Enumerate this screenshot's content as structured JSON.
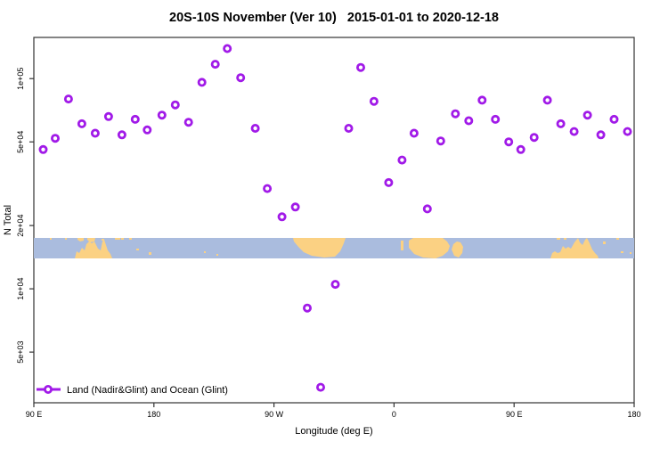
{
  "title": "20S-10S November (Ver 10)   2015-01-01 to 2020-12-18",
  "chart_data": {
    "type": "scatter",
    "title": "20S-10S November (Ver 10)   2015-01-01 to 2020-12-18",
    "xlabel": "Longitude (deg E)",
    "ylabel": "N Total",
    "x_scale": "linear",
    "y_scale": "log",
    "grid": false,
    "x_axis": {
      "min": 90,
      "max": 540,
      "ticks": [
        {
          "value": 90,
          "label": "90 E"
        },
        {
          "value": 180,
          "label": "180"
        },
        {
          "value": 270,
          "label": "90 W"
        },
        {
          "value": 360,
          "label": "0"
        },
        {
          "value": 450,
          "label": "90 E"
        },
        {
          "value": 540,
          "label": "180"
        }
      ]
    },
    "y_axis": {
      "min": 2870,
      "max": 157000,
      "ticks": [
        {
          "value": 100000,
          "label": "1e+05"
        },
        {
          "value": 50000,
          "label": "5e+04"
        },
        {
          "value": 20000,
          "label": "2e+04"
        },
        {
          "value": 10000,
          "label": "1e+04"
        },
        {
          "value": 5000,
          "label": "5e+03"
        }
      ]
    },
    "legend": {
      "position": "bottom-left",
      "label": "Land (Nadir&Glint) and Ocean (Glint)"
    },
    "series": [
      {
        "name": "Land (Nadir&Glint) and Ocean (Glint)",
        "marker": "open-circle",
        "color": "#a11ae8",
        "points": [
          [
            97,
            46000
          ],
          [
            106,
            52000
          ],
          [
            116,
            80000
          ],
          [
            126,
            61000
          ],
          [
            136,
            55000
          ],
          [
            146,
            66000
          ],
          [
            156,
            54000
          ],
          [
            166,
            64000
          ],
          [
            175,
            57000
          ],
          [
            186,
            67000
          ],
          [
            196,
            75000
          ],
          [
            206,
            62000
          ],
          [
            216,
            96000
          ],
          [
            226,
            117000
          ],
          [
            235,
            139000
          ],
          [
            245,
            101000
          ],
          [
            256,
            58000
          ],
          [
            265,
            30000
          ],
          [
            276,
            22000
          ],
          [
            286,
            24500
          ],
          [
            295,
            8100
          ],
          [
            305,
            3400
          ],
          [
            316,
            10500
          ],
          [
            326,
            58000
          ],
          [
            335,
            113000
          ],
          [
            345,
            78000
          ],
          [
            356,
            32000
          ],
          [
            366,
            41000
          ],
          [
            375,
            55000
          ],
          [
            385,
            24000
          ],
          [
            395,
            50500
          ],
          [
            406,
            68000
          ],
          [
            416,
            63000
          ],
          [
            426,
            79000
          ],
          [
            436,
            64000
          ],
          [
            446,
            50000
          ],
          [
            455,
            46000
          ],
          [
            465,
            52500
          ],
          [
            475,
            79000
          ],
          [
            485,
            61000
          ],
          [
            495,
            56000
          ],
          [
            505,
            67000
          ],
          [
            515,
            54000
          ],
          [
            525,
            64000
          ],
          [
            535,
            56000
          ]
        ]
      }
    ],
    "map_band": {
      "description": "land-ocean strip for latitude band 20S-10S",
      "ocean_color": "#aabcde",
      "land_color": "#fbd183",
      "top": 267,
      "bottom": 290,
      "polygons": [
        [
          [
            84,
            290
          ],
          [
            86,
            282
          ],
          [
            89,
            284
          ],
          [
            92,
            278
          ],
          [
            95,
            281
          ],
          [
            97,
            274
          ],
          [
            100,
            271
          ],
          [
            103,
            273
          ],
          [
            106,
            271
          ],
          [
            108,
            275
          ],
          [
            110,
            279
          ],
          [
            113,
            281
          ],
          [
            115,
            271
          ],
          [
            117,
            269
          ],
          [
            119,
            275
          ],
          [
            121,
            281
          ],
          [
            124,
            285
          ],
          [
            126,
            290
          ]
        ],
        [
          [
            87,
            267
          ],
          [
            94,
            267
          ],
          [
            94,
            270
          ],
          [
            90,
            271
          ],
          [
            87,
            269
          ]
        ],
        [
          [
            98,
            267
          ],
          [
            107,
            267
          ],
          [
            106,
            271
          ],
          [
            101,
            272
          ],
          [
            98,
            269
          ]
        ],
        [
          [
            329,
            267
          ],
          [
            388,
            267
          ],
          [
            386,
            273
          ],
          [
            382,
            282
          ],
          [
            376,
            288
          ],
          [
            364,
            289
          ],
          [
            350,
            287
          ],
          [
            341,
            283
          ],
          [
            335,
            277
          ],
          [
            330,
            271
          ]
        ],
        [
          [
            459,
            270
          ],
          [
            464,
            267
          ],
          [
            497,
            267
          ],
          [
            502,
            271
          ],
          [
            505,
            276
          ],
          [
            503,
            282
          ],
          [
            497,
            287
          ],
          [
            489,
            290
          ],
          [
            475,
            289
          ],
          [
            465,
            285
          ],
          [
            459,
            278
          ]
        ],
        [
          [
            509,
            274
          ],
          [
            513,
            271
          ],
          [
            517,
            272
          ],
          [
            520,
            277
          ],
          [
            519,
            284
          ],
          [
            515,
            289
          ],
          [
            510,
            287
          ],
          [
            507,
            280
          ]
        ],
        [
          [
            618,
            290
          ],
          [
            620,
            284
          ],
          [
            623,
            282
          ],
          [
            626,
            284
          ],
          [
            629,
            283
          ],
          [
            632,
            276
          ],
          [
            635,
            279
          ],
          [
            638,
            277
          ],
          [
            641,
            279
          ],
          [
            645,
            272
          ],
          [
            649,
            267
          ],
          [
            651,
            272
          ],
          [
            654,
            275
          ],
          [
            657,
            269
          ],
          [
            659,
            267
          ],
          [
            662,
            273
          ],
          [
            665,
            280
          ],
          [
            668,
            284
          ],
          [
            671,
            287
          ],
          [
            672,
            290
          ]
        ]
      ],
      "dots": [
        [
          56,
          267,
          2,
          2
        ],
        [
          73,
          267,
          2,
          2
        ],
        [
          114,
          268,
          3,
          2
        ],
        [
          129,
          267,
          6,
          2
        ],
        [
          136,
          267,
          3,
          2
        ],
        [
          145,
          267,
          3,
          2
        ],
        [
          153,
          279,
          3,
          2
        ],
        [
          167,
          283,
          3,
          3
        ],
        [
          229,
          282,
          2,
          2
        ],
        [
          243,
          285,
          2,
          2
        ],
        [
          450,
          270,
          3,
          11
        ],
        [
          625,
          267,
          4,
          2
        ],
        [
          633,
          267,
          3,
          2
        ],
        [
          677,
          271,
          3,
          3
        ],
        [
          692,
          267,
          3,
          2
        ],
        [
          697,
          282,
          3,
          2
        ],
        [
          707,
          283,
          2,
          2
        ]
      ]
    }
  },
  "colors": {
    "marker": "#a11ae8",
    "ocean": "#aabcde",
    "land": "#fbd183",
    "frame": "#333333"
  }
}
